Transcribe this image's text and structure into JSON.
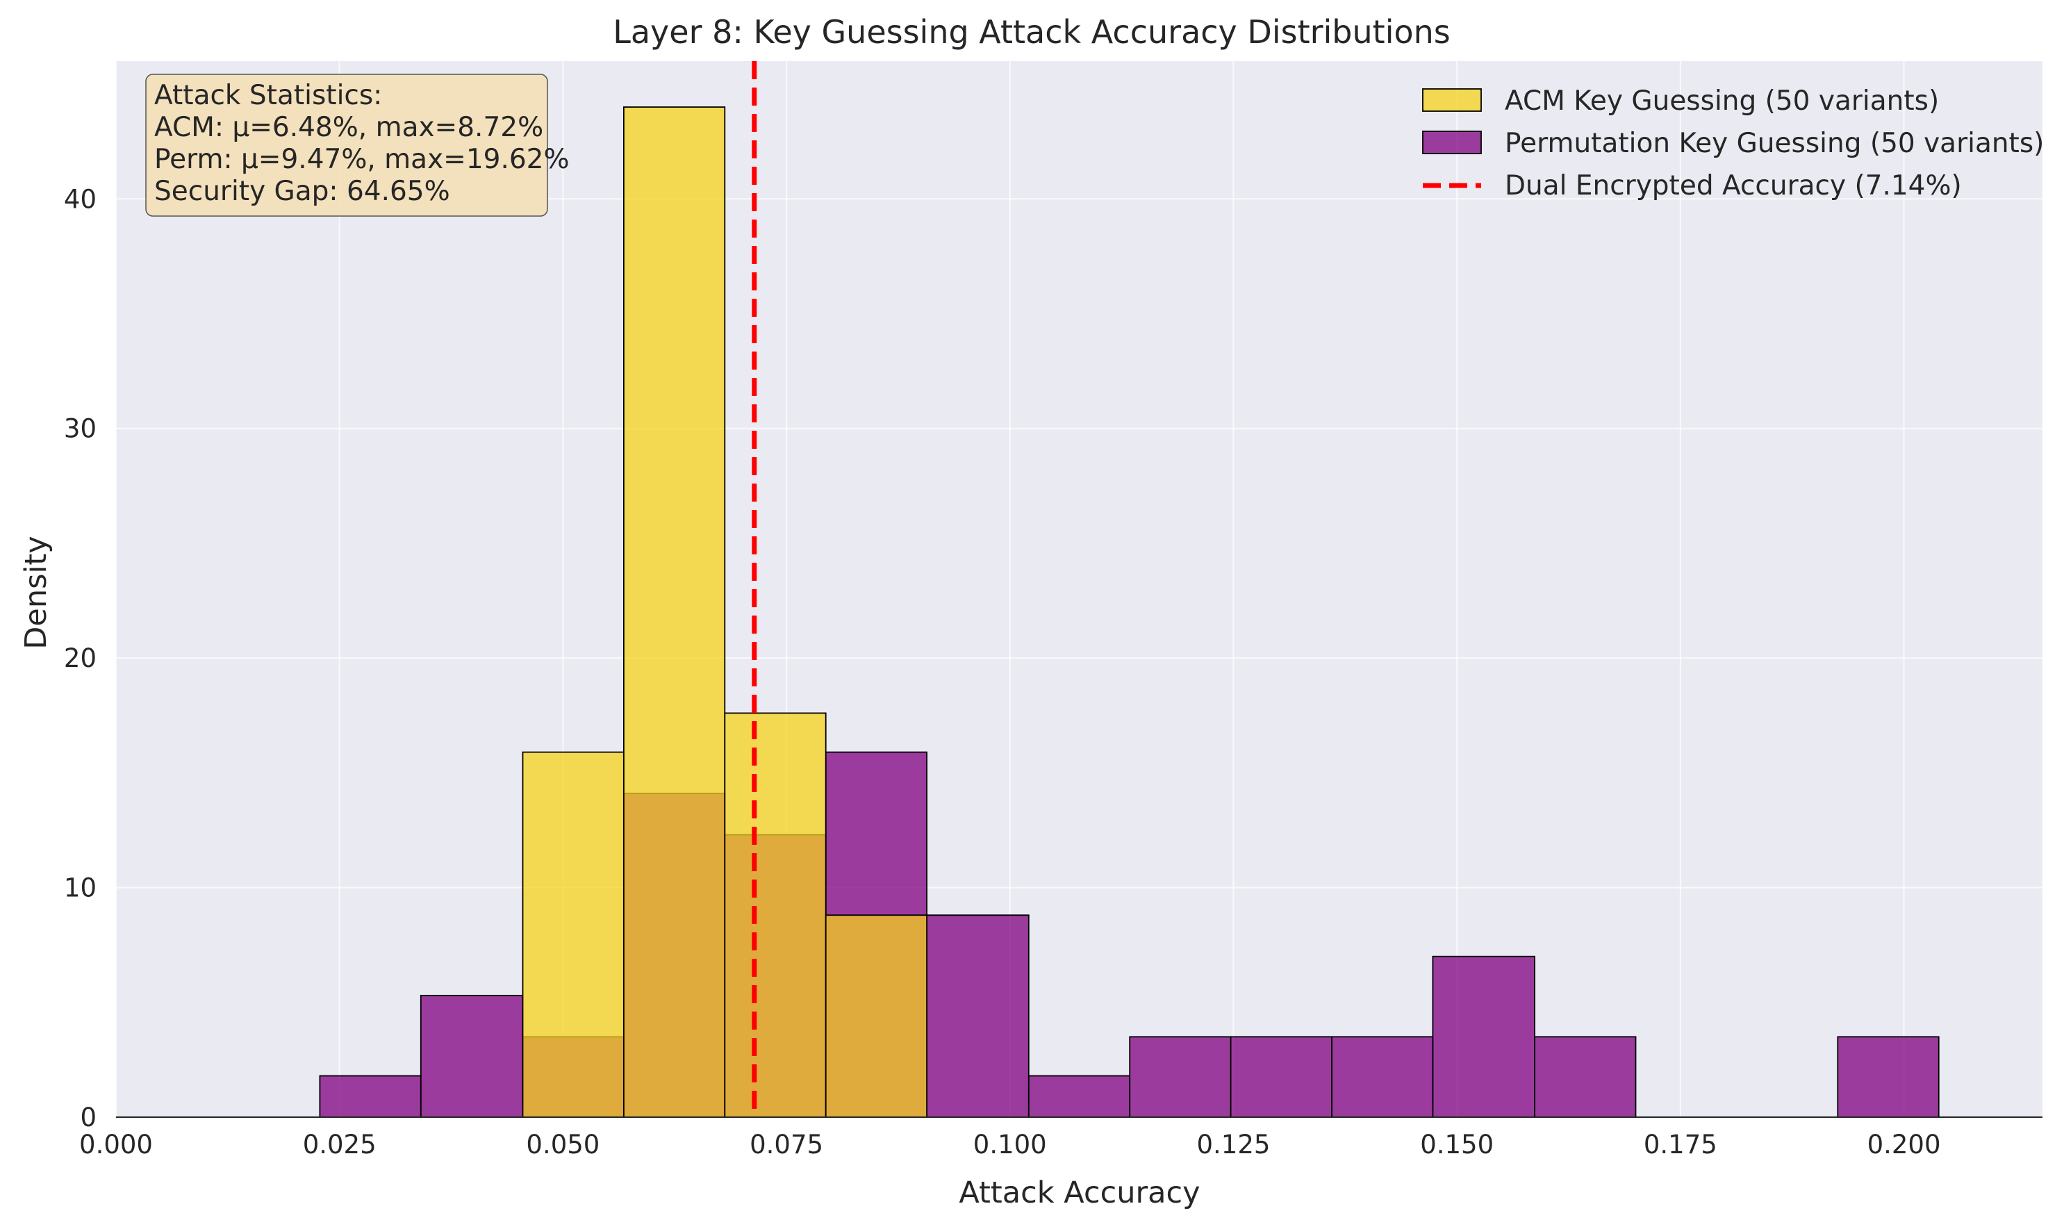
{
  "chart_data": {
    "type": "bar",
    "title": "Layer 8: Key Guessing Attack Accuracy Distributions",
    "xlabel": "Attack Accuracy",
    "ylabel": "Density",
    "xlim": [
      0.0,
      0.2155
    ],
    "ylim": [
      0,
      46
    ],
    "x_ticks": [
      "0.000",
      "0.025",
      "0.050",
      "0.075",
      "0.100",
      "0.125",
      "0.150",
      "0.175",
      "0.200"
    ],
    "x_tick_values": [
      0.0,
      0.025,
      0.05,
      0.075,
      0.1,
      0.125,
      0.15,
      0.175,
      0.2
    ],
    "y_ticks": [
      "0",
      "10",
      "20",
      "30",
      "40"
    ],
    "y_tick_values": [
      0,
      10,
      20,
      30,
      40
    ],
    "grid": true,
    "legend_position": "top-right",
    "series": [
      {
        "name": "ACM Key Guessing (50 variants)",
        "color": "#f5d21c",
        "opacity": 0.75,
        "bin_edges": [
          0.0455,
          0.0568,
          0.0681,
          0.0794,
          0.0907
        ],
        "values": [
          15.9,
          44.0,
          17.6,
          8.8
        ]
      },
      {
        "name": "Permutation Key Guessing (50 variants)",
        "color": "#800080",
        "opacity": 0.75,
        "bin_edges": [
          0.0228,
          0.0341,
          0.0455,
          0.0568,
          0.0681,
          0.0794,
          0.0907,
          0.1021,
          0.1134,
          0.1247,
          0.136,
          0.1473,
          0.1587,
          0.17,
          0.1813,
          0.1926,
          0.2039
        ],
        "values": [
          1.8,
          5.3,
          3.5,
          14.1,
          12.3,
          15.9,
          8.8,
          1.8,
          3.5,
          3.5,
          3.5,
          7.0,
          3.5,
          0,
          0,
          3.5
        ]
      }
    ],
    "reference_line": {
      "name": "Dual Encrypted Accuracy (7.14%)",
      "x": 0.0714,
      "color": "#ff0000",
      "style": "dashed"
    },
    "annotation": {
      "lines": [
        "Attack Statistics:",
        "ACM: μ=6.48%, max=8.72%",
        "Perm: μ=9.47%, max=19.62%",
        "Security Gap: 64.65%"
      ],
      "background": "#f5deb3"
    }
  }
}
